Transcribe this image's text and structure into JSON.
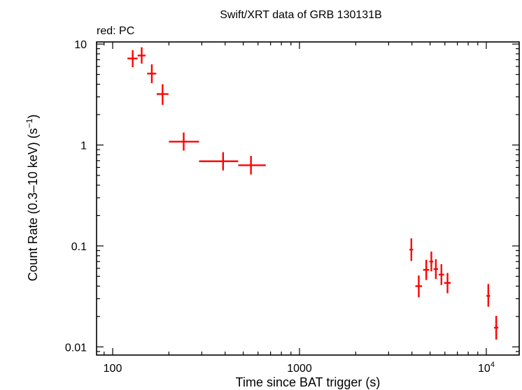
{
  "chart_data": {
    "type": "scatter",
    "title": "Swift/XRT data of GRB 130131B",
    "subtitle": "red: PC",
    "xlabel": "Time since BAT trigger (s)",
    "ylabel_main": "Count Rate (0.3–10 keV) (s",
    "ylabel_sup": "−1",
    "ylabel_end": ")",
    "xscale": "log",
    "yscale": "log",
    "xlim": [
      82,
      15000
    ],
    "ylim": [
      0.0083,
      10.5
    ],
    "xticks": [
      {
        "value": 100,
        "label": "100"
      },
      {
        "value": 1000,
        "label": "1000"
      },
      {
        "value": 10000,
        "label": "10",
        "sup": "4"
      }
    ],
    "yticks": [
      {
        "value": 0.01,
        "label": "0.01"
      },
      {
        "value": 0.1,
        "label": "0.1"
      },
      {
        "value": 1,
        "label": "1"
      },
      {
        "value": 10,
        "label": "10"
      }
    ],
    "series": [
      {
        "color": "#ff0000",
        "points": [
          {
            "x": 128,
            "xlo": 120,
            "xhi": 136,
            "y": 7.2,
            "ylo": 5.9,
            "yhi": 8.7
          },
          {
            "x": 143,
            "xlo": 136,
            "xhi": 150,
            "y": 7.7,
            "ylo": 6.4,
            "yhi": 9.3
          },
          {
            "x": 162,
            "xlo": 153,
            "xhi": 171,
            "y": 5.1,
            "ylo": 4.1,
            "yhi": 6.3
          },
          {
            "x": 185,
            "xlo": 172,
            "xhi": 199,
            "y": 3.2,
            "ylo": 2.5,
            "yhi": 4.0
          },
          {
            "x": 240,
            "xlo": 200,
            "xhi": 290,
            "y": 1.08,
            "ylo": 0.88,
            "yhi": 1.33
          },
          {
            "x": 390,
            "xlo": 290,
            "xhi": 470,
            "y": 0.69,
            "ylo": 0.56,
            "yhi": 0.85
          },
          {
            "x": 550,
            "xlo": 470,
            "xhi": 660,
            "y": 0.63,
            "ylo": 0.51,
            "yhi": 0.78
          },
          {
            "x": 3970,
            "xlo": 3880,
            "xhi": 4060,
            "y": 0.092,
            "ylo": 0.071,
            "yhi": 0.119
          },
          {
            "x": 4350,
            "xlo": 4170,
            "xhi": 4530,
            "y": 0.04,
            "ylo": 0.031,
            "yhi": 0.051
          },
          {
            "x": 4770,
            "xlo": 4590,
            "xhi": 4950,
            "y": 0.058,
            "ylo": 0.046,
            "yhi": 0.073
          },
          {
            "x": 5080,
            "xlo": 4960,
            "xhi": 5200,
            "y": 0.07,
            "ylo": 0.056,
            "yhi": 0.088
          },
          {
            "x": 5370,
            "xlo": 5220,
            "xhi": 5520,
            "y": 0.059,
            "ylo": 0.047,
            "yhi": 0.074
          },
          {
            "x": 5750,
            "xlo": 5560,
            "xhi": 5940,
            "y": 0.052,
            "ylo": 0.041,
            "yhi": 0.066
          },
          {
            "x": 6200,
            "xlo": 5950,
            "xhi": 6450,
            "y": 0.043,
            "ylo": 0.034,
            "yhi": 0.054
          },
          {
            "x": 10250,
            "xlo": 10020,
            "xhi": 10480,
            "y": 0.032,
            "ylo": 0.025,
            "yhi": 0.042
          },
          {
            "x": 11300,
            "xlo": 11000,
            "xhi": 11600,
            "y": 0.0155,
            "ylo": 0.0118,
            "yhi": 0.0203
          }
        ]
      }
    ]
  }
}
